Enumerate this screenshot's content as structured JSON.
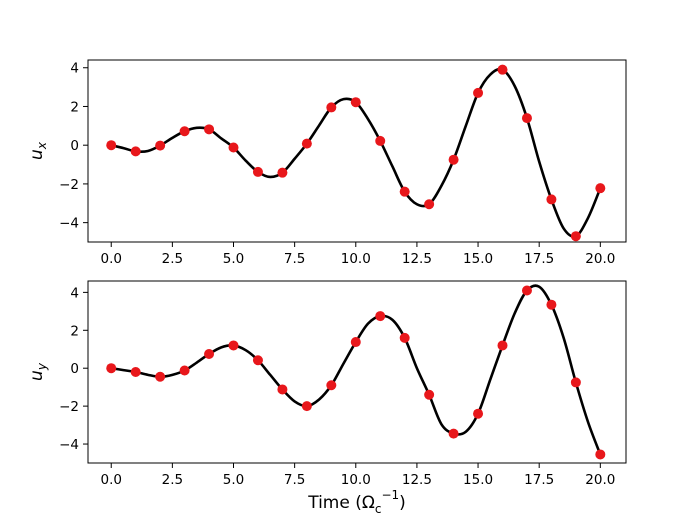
{
  "chart_data": [
    {
      "type": "line",
      "ylabel_main": "u",
      "ylabel_sub": "x",
      "xlim": [
        -0.95,
        21.05
      ],
      "ylim": [
        -5.0,
        4.4
      ],
      "xticks": [
        0.0,
        2.5,
        5.0,
        7.5,
        10.0,
        12.5,
        15.0,
        17.5,
        20.0
      ],
      "xtick_labels": [
        "0.0",
        "2.5",
        "5.0",
        "7.5",
        "10.0",
        "12.5",
        "15.0",
        "17.5",
        "20.0"
      ],
      "yticks": [
        4,
        2,
        0,
        -2,
        -4
      ],
      "ytick_labels": [
        "4",
        "2",
        "0",
        "−2",
        "−4"
      ],
      "grid": false,
      "series": [
        {
          "style": "line",
          "color": "#000000",
          "x": [
            0,
            0.5,
            1,
            1.5,
            2,
            2.5,
            3,
            3.5,
            4,
            4.5,
            5,
            5.5,
            6,
            6.5,
            7,
            7.5,
            8,
            8.5,
            9,
            9.5,
            10,
            10.5,
            11,
            11.5,
            12,
            12.5,
            13,
            13.5,
            14,
            14.5,
            15,
            15.5,
            16,
            16.5,
            17,
            17.5,
            18,
            18.5,
            19,
            19.5,
            20
          ],
          "y": [
            0.0,
            -0.15,
            -0.32,
            -0.3,
            -0.02,
            0.38,
            0.72,
            0.9,
            0.82,
            0.35,
            -0.12,
            -0.8,
            -1.38,
            -1.64,
            -1.42,
            -0.7,
            0.08,
            1.02,
            1.95,
            2.38,
            2.22,
            1.35,
            0.22,
            -1.1,
            -2.4,
            -3.05,
            -3.05,
            -2.1,
            -0.75,
            1.0,
            2.7,
            3.65,
            3.9,
            3.05,
            1.4,
            -0.85,
            -2.8,
            -4.3,
            -4.7,
            -3.75,
            -2.22
          ]
        },
        {
          "style": "points",
          "color": "#e8171b",
          "x": [
            0,
            1,
            2,
            3,
            4,
            5,
            6,
            7,
            8,
            9,
            10,
            11,
            12,
            13,
            14,
            15,
            16,
            17,
            18,
            19,
            20
          ],
          "y": [
            0.0,
            -0.32,
            -0.02,
            0.72,
            0.82,
            -0.12,
            -1.38,
            -1.42,
            0.08,
            1.95,
            2.22,
            0.22,
            -2.4,
            -3.05,
            -0.75,
            2.7,
            3.9,
            1.4,
            -2.8,
            -4.7,
            -2.22
          ]
        }
      ]
    },
    {
      "type": "line",
      "ylabel_main": "u",
      "ylabel_sub": "y",
      "xlabel_main": "Time (Ω",
      "xlabel_sub": "c",
      "xlabel_sup": "−1",
      "xlabel_end": ")",
      "xlim": [
        -0.95,
        21.05
      ],
      "ylim": [
        -5.0,
        4.6
      ],
      "xticks": [
        0.0,
        2.5,
        5.0,
        7.5,
        10.0,
        12.5,
        15.0,
        17.5,
        20.0
      ],
      "xtick_labels": [
        "0.0",
        "2.5",
        "5.0",
        "7.5",
        "10.0",
        "12.5",
        "15.0",
        "17.5",
        "20.0"
      ],
      "yticks": [
        4,
        2,
        0,
        -2,
        -4
      ],
      "ytick_labels": [
        "4",
        "2",
        "0",
        "−2",
        "−4"
      ],
      "grid": false,
      "series": [
        {
          "style": "line",
          "color": "#000000",
          "x": [
            0,
            0.5,
            1,
            1.5,
            2,
            2.5,
            3,
            3.5,
            4,
            4.5,
            5,
            5.5,
            6,
            6.5,
            7,
            7.5,
            8,
            8.5,
            9,
            9.5,
            10,
            10.5,
            11,
            11.5,
            12,
            12.5,
            13,
            13.5,
            14,
            14.5,
            15,
            15.5,
            16,
            16.5,
            17,
            17.5,
            18,
            18.5,
            19,
            19.5,
            20
          ],
          "y": [
            0.0,
            -0.1,
            -0.2,
            -0.35,
            -0.45,
            -0.35,
            -0.12,
            0.3,
            0.75,
            1.1,
            1.2,
            0.95,
            0.42,
            -0.35,
            -1.12,
            -1.75,
            -2.0,
            -1.65,
            -0.9,
            0.25,
            1.38,
            2.35,
            2.75,
            2.55,
            1.6,
            0.0,
            -1.4,
            -2.95,
            -3.45,
            -3.35,
            -2.4,
            -0.6,
            1.2,
            2.9,
            4.1,
            4.3,
            3.35,
            1.6,
            -0.75,
            -2.85,
            -4.55
          ]
        },
        {
          "style": "points",
          "color": "#e8171b",
          "x": [
            0,
            1,
            2,
            3,
            4,
            5,
            6,
            7,
            8,
            9,
            10,
            11,
            12,
            13,
            14,
            15,
            16,
            17,
            18,
            19,
            20
          ],
          "y": [
            0.0,
            -0.2,
            -0.45,
            -0.12,
            0.75,
            1.2,
            0.42,
            -1.12,
            -2.0,
            -0.9,
            1.38,
            2.75,
            1.6,
            -1.4,
            -3.45,
            -2.4,
            1.2,
            4.1,
            3.35,
            -0.75,
            -4.55
          ]
        }
      ]
    }
  ]
}
